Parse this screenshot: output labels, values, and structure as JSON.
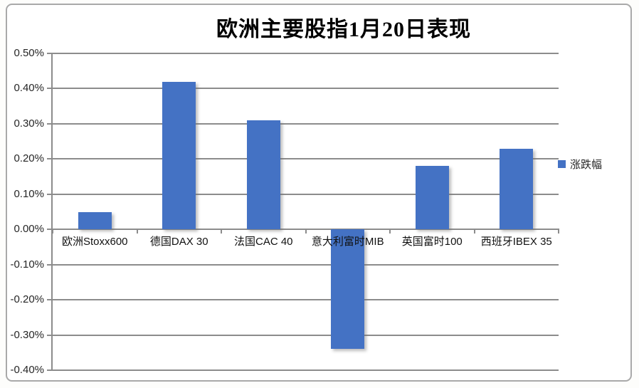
{
  "chart_data": {
    "type": "bar",
    "title": "欧洲主要股指1月20日表现",
    "categories": [
      "欧洲Stoxx600",
      "德国DAX 30",
      "法国CAC 40",
      "意大利富时MIB",
      "英国富时100",
      "西班牙IBEX 35"
    ],
    "series": [
      {
        "name": "涨跌幅",
        "values": [
          0.05,
          0.42,
          0.31,
          -0.34,
          0.18,
          0.23
        ]
      }
    ],
    "xlabel": "",
    "ylabel": "",
    "ylim": [
      -0.4,
      0.5
    ],
    "ytick_step": 0.1,
    "ytick_labels": [
      "0.50%",
      "0.40%",
      "0.30%",
      "0.20%",
      "0.10%",
      "0.00%",
      "-0.10%",
      "-0.20%",
      "-0.30%",
      "-0.40%"
    ],
    "grid": true,
    "legend_position": "right"
  },
  "legend": {
    "label": "涨跌幅"
  },
  "colors": {
    "bar_fill": "#4472C4",
    "gridline": "#8C8C8C",
    "chart_border": "#A9A9A9",
    "title_text": "#000000",
    "label_text": "#262626",
    "background": "#FFFFFF"
  }
}
